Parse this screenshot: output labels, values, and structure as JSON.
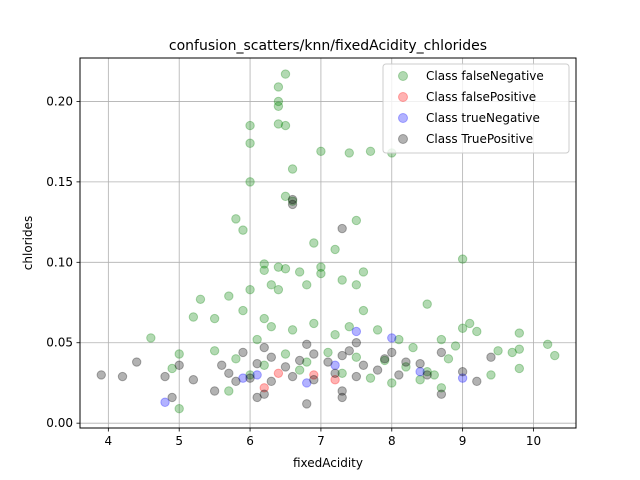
{
  "chart_data": {
    "type": "scatter",
    "title": "confusion_scatters/knn/fixedAcidity_chlorides",
    "xlabel": "fixedAcidity",
    "ylabel": "chlorides",
    "xlim": [
      3.6,
      10.6
    ],
    "ylim": [
      -0.003,
      0.227
    ],
    "xticks": [
      4,
      5,
      6,
      7,
      8,
      9,
      10
    ],
    "xtick_labels": [
      "4",
      "5",
      "6",
      "7",
      "8",
      "9",
      "10"
    ],
    "yticks": [
      0.0,
      0.05,
      0.1,
      0.15,
      0.2
    ],
    "ytick_labels": [
      "0.00",
      "0.05",
      "0.10",
      "0.15",
      "0.20"
    ],
    "grid": true,
    "legend_position": "top-right",
    "series": [
      {
        "name": "Class falseNegative",
        "color": "#008000",
        "points": [
          [
            6.5,
            0.217
          ],
          [
            6.4,
            0.209
          ],
          [
            6.4,
            0.2
          ],
          [
            6.4,
            0.197
          ],
          [
            6.4,
            0.186
          ],
          [
            6.5,
            0.185
          ],
          [
            6.0,
            0.185
          ],
          [
            6.0,
            0.174
          ],
          [
            6.6,
            0.158
          ],
          [
            7.0,
            0.169
          ],
          [
            7.4,
            0.168
          ],
          [
            7.7,
            0.169
          ],
          [
            8.0,
            0.168
          ],
          [
            6.0,
            0.15
          ],
          [
            6.5,
            0.141
          ],
          [
            6.6,
            0.138
          ],
          [
            5.8,
            0.127
          ],
          [
            5.9,
            0.12
          ],
          [
            7.5,
            0.126
          ],
          [
            6.9,
            0.112
          ],
          [
            7.2,
            0.108
          ],
          [
            9.0,
            0.102
          ],
          [
            6.2,
            0.099
          ],
          [
            6.2,
            0.095
          ],
          [
            6.4,
            0.097
          ],
          [
            6.5,
            0.096
          ],
          [
            7.0,
            0.097
          ],
          [
            7.0,
            0.093
          ],
          [
            6.7,
            0.094
          ],
          [
            7.6,
            0.094
          ],
          [
            7.3,
            0.089
          ],
          [
            6.3,
            0.086
          ],
          [
            7.5,
            0.086
          ],
          [
            6.8,
            0.086
          ],
          [
            6.0,
            0.083
          ],
          [
            6.4,
            0.083
          ],
          [
            5.7,
            0.079
          ],
          [
            5.3,
            0.077
          ],
          [
            8.5,
            0.074
          ],
          [
            5.9,
            0.07
          ],
          [
            5.2,
            0.066
          ],
          [
            7.6,
            0.07
          ],
          [
            6.2,
            0.065
          ],
          [
            9.1,
            0.062
          ],
          [
            5.5,
            0.065
          ],
          [
            4.6,
            0.053
          ],
          [
            9.0,
            0.059
          ],
          [
            9.8,
            0.056
          ],
          [
            10.2,
            0.049
          ],
          [
            10.3,
            0.042
          ],
          [
            9.8,
            0.046
          ],
          [
            9.2,
            0.057
          ],
          [
            9.5,
            0.045
          ],
          [
            8.9,
            0.048
          ],
          [
            9.7,
            0.044
          ],
          [
            8.7,
            0.052
          ],
          [
            5.0,
            0.043
          ],
          [
            4.9,
            0.034
          ],
          [
            5.0,
            0.009
          ],
          [
            5.7,
            0.02
          ],
          [
            8.8,
            0.04
          ],
          [
            8.6,
            0.03
          ],
          [
            8.7,
            0.022
          ],
          [
            9.4,
            0.03
          ],
          [
            9.8,
            0.034
          ],
          [
            5.5,
            0.045
          ],
          [
            6.1,
            0.052
          ],
          [
            6.3,
            0.06
          ],
          [
            6.6,
            0.058
          ],
          [
            6.9,
            0.062
          ],
          [
            7.2,
            0.055
          ],
          [
            7.4,
            0.06
          ],
          [
            7.8,
            0.058
          ],
          [
            8.1,
            0.052
          ],
          [
            8.3,
            0.047
          ],
          [
            5.8,
            0.04
          ],
          [
            6.2,
            0.036
          ],
          [
            6.5,
            0.043
          ],
          [
            6.8,
            0.038
          ],
          [
            7.1,
            0.044
          ],
          [
            7.5,
            0.041
          ],
          [
            7.9,
            0.039
          ],
          [
            8.2,
            0.035
          ],
          [
            8.5,
            0.032
          ],
          [
            6.0,
            0.03
          ],
          [
            6.7,
            0.033
          ],
          [
            7.3,
            0.031
          ],
          [
            7.7,
            0.028
          ],
          [
            8.0,
            0.025
          ],
          [
            8.4,
            0.027
          ]
        ]
      },
      {
        "name": "Class falsePositive",
        "color": "#ff0000",
        "points": [
          [
            6.2,
            0.022
          ],
          [
            7.2,
            0.027
          ],
          [
            6.9,
            0.03
          ],
          [
            6.4,
            0.031
          ]
        ]
      },
      {
        "name": "Class trueNegative",
        "color": "#0000ff",
        "points": [
          [
            4.8,
            0.013
          ],
          [
            8.0,
            0.053
          ],
          [
            8.4,
            0.032
          ],
          [
            6.8,
            0.025
          ],
          [
            9.0,
            0.028
          ],
          [
            7.5,
            0.057
          ],
          [
            6.1,
            0.03
          ],
          [
            5.9,
            0.028
          ],
          [
            7.2,
            0.036
          ]
        ]
      },
      {
        "name": "Class TruePositive",
        "color": "#000000",
        "points": [
          [
            3.9,
            0.03
          ],
          [
            4.2,
            0.029
          ],
          [
            4.4,
            0.038
          ],
          [
            4.8,
            0.029
          ],
          [
            4.9,
            0.016
          ],
          [
            5.0,
            0.036
          ],
          [
            5.2,
            0.027
          ],
          [
            5.5,
            0.02
          ],
          [
            5.8,
            0.026
          ],
          [
            6.1,
            0.016
          ],
          [
            6.2,
            0.018
          ],
          [
            6.6,
            0.136
          ],
          [
            6.6,
            0.139
          ],
          [
            7.3,
            0.121
          ],
          [
            6.8,
            0.012
          ],
          [
            7.3,
            0.016
          ],
          [
            7.3,
            0.02
          ],
          [
            8.7,
            0.018
          ],
          [
            9.2,
            0.026
          ],
          [
            9.0,
            0.032
          ],
          [
            8.7,
            0.044
          ],
          [
            7.5,
            0.05
          ],
          [
            5.6,
            0.036
          ],
          [
            5.9,
            0.044
          ],
          [
            6.1,
            0.037
          ],
          [
            6.3,
            0.041
          ],
          [
            6.5,
            0.035
          ],
          [
            6.7,
            0.039
          ],
          [
            6.9,
            0.043
          ],
          [
            7.1,
            0.038
          ],
          [
            7.3,
            0.042
          ],
          [
            7.6,
            0.036
          ],
          [
            7.9,
            0.04
          ],
          [
            8.2,
            0.038
          ],
          [
            8.5,
            0.03
          ],
          [
            5.7,
            0.031
          ],
          [
            6.0,
            0.028
          ],
          [
            6.3,
            0.026
          ],
          [
            6.6,
            0.029
          ],
          [
            6.9,
            0.027
          ],
          [
            7.2,
            0.031
          ],
          [
            7.5,
            0.029
          ],
          [
            7.8,
            0.033
          ],
          [
            8.1,
            0.03
          ],
          [
            6.2,
            0.047
          ],
          [
            6.8,
            0.049
          ],
          [
            7.4,
            0.045
          ],
          [
            8.0,
            0.044
          ],
          [
            8.4,
            0.037
          ],
          [
            9.4,
            0.041
          ]
        ]
      }
    ]
  }
}
